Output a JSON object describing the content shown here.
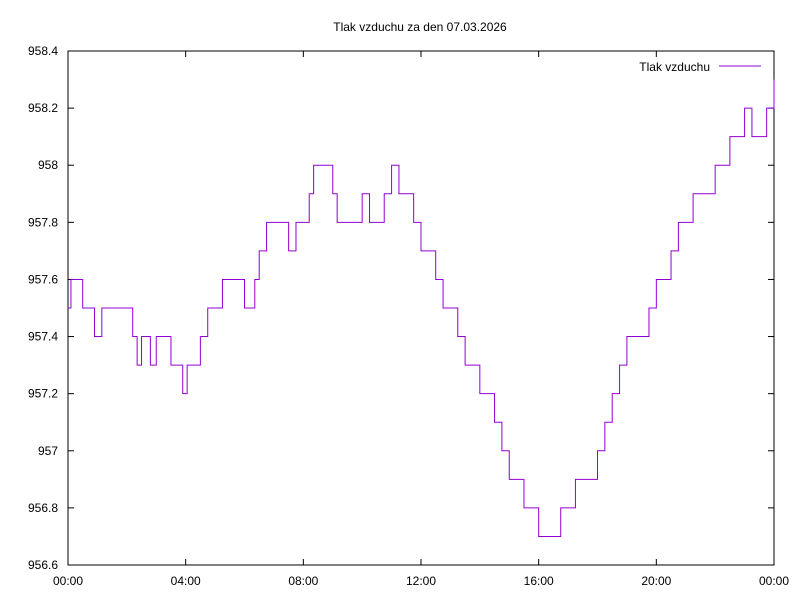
{
  "chart_data": {
    "type": "line",
    "title": "Tlak vzduchu za den 07.03.2026",
    "xlabel": "",
    "ylabel": "",
    "x_tick_labels": [
      "00:00",
      "04:00",
      "08:00",
      "12:00",
      "16:00",
      "20:00",
      "00:00"
    ],
    "x_range_hours": [
      0,
      24
    ],
    "y_tick_labels": [
      "956.6",
      "956.8",
      "957",
      "957.2",
      "957.4",
      "957.6",
      "957.8",
      "958",
      "958.2",
      "958.4"
    ],
    "ylim": [
      956.6,
      958.4
    ],
    "grid": false,
    "legend_position": "top-right",
    "series": [
      {
        "name": "Tlak vzduchu",
        "color": "#9400d3",
        "x_hours": [
          0.0,
          0.1,
          0.35,
          0.5,
          0.75,
          0.9,
          1.0,
          1.15,
          1.3,
          1.5,
          1.75,
          2.0,
          2.2,
          2.35,
          2.5,
          2.65,
          2.8,
          3.0,
          3.2,
          3.35,
          3.5,
          3.7,
          3.9,
          4.05,
          4.2,
          4.5,
          4.75,
          5.0,
          5.25,
          5.5,
          5.75,
          6.0,
          6.2,
          6.35,
          6.5,
          6.75,
          7.0,
          7.25,
          7.5,
          7.75,
          8.0,
          8.2,
          8.35,
          8.5,
          8.75,
          9.0,
          9.15,
          9.3,
          9.45,
          9.6,
          9.8,
          10.0,
          10.25,
          10.5,
          10.75,
          11.0,
          11.25,
          11.5,
          11.75,
          12.0,
          12.25,
          12.5,
          12.75,
          13.0,
          13.25,
          13.5,
          13.75,
          14.0,
          14.25,
          14.5,
          14.75,
          15.0,
          15.25,
          15.5,
          15.75,
          16.0,
          16.25,
          16.5,
          16.75,
          17.0,
          17.25,
          17.5,
          17.75,
          18.0,
          18.25,
          18.5,
          18.75,
          19.0,
          19.25,
          19.5,
          19.75,
          20.0,
          20.25,
          20.5,
          20.75,
          21.0,
          21.25,
          21.5,
          21.75,
          22.0,
          22.25,
          22.5,
          22.75,
          23.0,
          23.25,
          23.5,
          23.75,
          24.0
        ],
        "values": [
          957.5,
          957.6,
          957.6,
          957.5,
          957.5,
          957.4,
          957.4,
          957.5,
          957.5,
          957.5,
          957.5,
          957.5,
          957.4,
          957.3,
          957.4,
          957.4,
          957.3,
          957.4,
          957.4,
          957.4,
          957.3,
          957.3,
          957.2,
          957.3,
          957.3,
          957.4,
          957.5,
          957.5,
          957.6,
          957.6,
          957.6,
          957.5,
          957.5,
          957.6,
          957.7,
          957.8,
          957.8,
          957.8,
          957.7,
          957.8,
          957.8,
          957.9,
          958.0,
          958.0,
          958.0,
          957.9,
          957.8,
          957.8,
          957.8,
          957.8,
          957.8,
          957.9,
          957.8,
          957.8,
          957.9,
          958.0,
          957.9,
          957.9,
          957.8,
          957.7,
          957.7,
          957.6,
          957.5,
          957.5,
          957.4,
          957.3,
          957.3,
          957.2,
          957.2,
          957.1,
          957.0,
          956.9,
          956.9,
          956.8,
          956.8,
          956.7,
          956.7,
          956.7,
          956.8,
          956.8,
          956.9,
          956.9,
          956.9,
          957.0,
          957.1,
          957.2,
          957.3,
          957.4,
          957.4,
          957.4,
          957.5,
          957.6,
          957.6,
          957.7,
          957.8,
          957.8,
          957.9,
          957.9,
          957.9,
          958.0,
          958.0,
          958.1,
          958.1,
          958.2,
          958.1,
          958.1,
          958.2,
          958.3
        ]
      }
    ]
  }
}
